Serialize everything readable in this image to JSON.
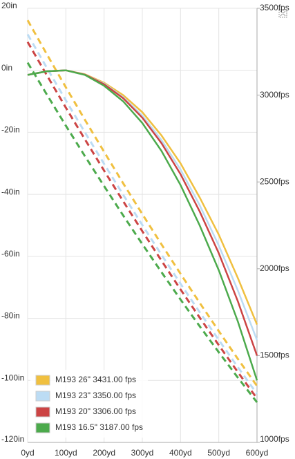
{
  "chart_data": {
    "type": "line",
    "x": [
      0,
      50,
      100,
      150,
      200,
      250,
      300,
      350,
      400,
      450,
      500,
      550,
      600
    ],
    "xlim": [
      0,
      600
    ],
    "xticks": [
      {
        "value": 0,
        "label": "0yd"
      },
      {
        "value": 100,
        "label": "100yd"
      },
      {
        "value": 200,
        "label": "200yd"
      },
      {
        "value": 300,
        "label": "300yd"
      },
      {
        "value": 400,
        "label": "400yd"
      },
      {
        "value": 500,
        "label": "500yd"
      },
      {
        "value": 600,
        "label": "600yd"
      }
    ],
    "ylim": [
      -120,
      20
    ],
    "yticks": [
      {
        "value": 20,
        "label": "20in"
      },
      {
        "value": 0,
        "label": "0in"
      },
      {
        "value": -20,
        "label": "-20in"
      },
      {
        "value": -40,
        "label": "-40in"
      },
      {
        "value": -60,
        "label": "-60in"
      },
      {
        "value": -80,
        "label": "-80in"
      },
      {
        "value": -100,
        "label": "-100in"
      },
      {
        "value": -120,
        "label": "-120in"
      }
    ],
    "y2lim": [
      1000,
      3500
    ],
    "y2ticks": [
      {
        "value": 3500,
        "label": "3500fps"
      },
      {
        "value": 3000,
        "label": "3000fps"
      },
      {
        "value": 2500,
        "label": "2500fps"
      },
      {
        "value": 2000,
        "label": "2000fps"
      },
      {
        "value": 1500,
        "label": "1500fps"
      },
      {
        "value": 1000,
        "label": "1000fps"
      }
    ],
    "grid": true,
    "legend": "lower-left",
    "series": [
      {
        "name": "M193 26\" 3431.00 fps",
        "color": "#f0c040",
        "values": [
          -1.5,
          -0.3,
          0,
          -1.3,
          -4,
          -8,
          -13.5,
          -21,
          -30,
          -41,
          -53,
          -67,
          -82
        ],
        "velocity": [
          3431,
          3236,
          3045,
          2857,
          2673,
          2492,
          2315,
          2141,
          1971,
          1804,
          1641,
          1481,
          1325
        ]
      },
      {
        "name": "M193 23\" 3350.00 fps",
        "color": "#bcdcf4",
        "values": [
          -1.5,
          -0.3,
          0,
          -1.4,
          -4.3,
          -8.7,
          -14.6,
          -22.5,
          -32,
          -43.5,
          -56.5,
          -71,
          -87
        ],
        "velocity": [
          3350,
          3158,
          2970,
          2785,
          2604,
          2426,
          2252,
          2081,
          1914,
          1750,
          1590,
          1433,
          1280
        ]
      },
      {
        "name": "M193 20\" 3306.00 fps",
        "color": "#cc4444",
        "values": [
          -1.5,
          -0.3,
          0,
          -1.4,
          -4.5,
          -9,
          -15.3,
          -23.5,
          -33.5,
          -45.5,
          -59,
          -74.5,
          -92
        ],
        "velocity": [
          3306,
          3115,
          2928,
          2745,
          2565,
          2389,
          2216,
          2047,
          1881,
          1719,
          1560,
          1405,
          1253
        ]
      },
      {
        "name": "M193 16.5\" 3187.00 fps",
        "color": "#4caa4c",
        "values": [
          -1.5,
          -0.3,
          0,
          -1.5,
          -5,
          -10,
          -17,
          -26,
          -37,
          -50,
          -64.5,
          -81,
          -100
        ],
        "velocity": [
          3187,
          3004,
          2824,
          2648,
          2476,
          2307,
          2142,
          1981,
          1823,
          1669,
          1519,
          1373,
          1231
        ]
      }
    ]
  }
}
